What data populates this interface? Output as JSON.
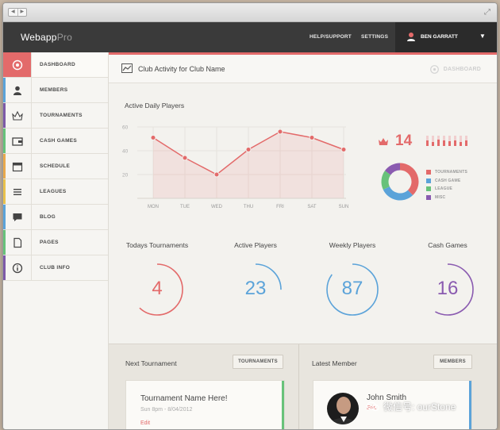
{
  "app": {
    "logo_bold": "Webapp",
    "logo_light": "Pro",
    "nav": [
      "HELP/SUPPORT",
      "SETTINGS"
    ],
    "user_name": "BEN GARRATT"
  },
  "sidebar": {
    "items": [
      {
        "label": "DASHBOARD",
        "icon": "palette-icon",
        "color": "#e36a6a"
      },
      {
        "label": "MEMBERS",
        "icon": "user-icon",
        "color": "#5ba3d9"
      },
      {
        "label": "TOURNAMENTS",
        "icon": "crown-icon",
        "color": "#7d5aa8"
      },
      {
        "label": "CASH GAMES",
        "icon": "wallet-icon",
        "color": "#68c27a"
      },
      {
        "label": "SCHEDULE",
        "icon": "calendar-icon",
        "color": "#e9a94c"
      },
      {
        "label": "LEAGUES",
        "icon": "list-icon",
        "color": "#e9c14c"
      },
      {
        "label": "BLOG",
        "icon": "chat-icon",
        "color": "#5ba3d9"
      },
      {
        "label": "PAGES",
        "icon": "page-icon",
        "color": "#68c27a"
      },
      {
        "label": "CLUB INFO",
        "icon": "info-icon",
        "color": "#7d5aa8"
      }
    ]
  },
  "header": {
    "title": "Club Activity for Club Name",
    "breadcrumb": "DASHBOARD"
  },
  "activity": {
    "title": "Active Daily Players",
    "big_number": "14",
    "mini_bars": [
      0.55,
      0.35,
      0.6,
      0.5,
      0.45,
      0.55,
      0.4,
      0.5
    ]
  },
  "chart_data": {
    "type": "line",
    "title": "Active Daily Players",
    "categories": [
      "MON",
      "TUE",
      "WED",
      "THU",
      "FRI",
      "SAT",
      "SUN"
    ],
    "values": [
      51,
      34,
      20,
      41,
      56,
      51,
      41
    ],
    "yticks": [
      "20",
      "40",
      "60"
    ],
    "ylim": [
      0,
      60
    ],
    "color": "#e36a6a",
    "grid": true
  },
  "donut": {
    "slices": [
      {
        "label": "TOURNAMENTS",
        "value": 0.38,
        "color": "#e36a6a"
      },
      {
        "label": "CASH GAME",
        "value": 0.3,
        "color": "#5ba3d9"
      },
      {
        "label": "LEAGUE",
        "value": 0.17,
        "color": "#68c27a"
      },
      {
        "label": "MISC",
        "value": 0.15,
        "color": "#8a5bb0"
      }
    ]
  },
  "stats": [
    {
      "title": "Todays Tournaments",
      "value": "4",
      "color": "#e36a6a",
      "fill": 0.62
    },
    {
      "title": "Active Players",
      "value": "23",
      "color": "#5ba3d9",
      "fill": 0.25
    },
    {
      "title": "Weekly Players",
      "value": "87",
      "color": "#5ba3d9",
      "fill": 0.85
    },
    {
      "title": "Cash Games",
      "value": "16",
      "color": "#8a5bb0",
      "fill": 0.58
    }
  ],
  "next_tournament": {
    "title": "Next Tournament",
    "button": "TOURNAMENTS",
    "card_title": "Tournament Name Here!",
    "card_date": "Sun 8pm - 8/04/2012",
    "edit": "Edit"
  },
  "latest_member": {
    "title": "Latest Member",
    "button": "MEMBERS",
    "name": "John Smith",
    "edit": "Edit"
  },
  "watermark": "微信号: ourStone"
}
